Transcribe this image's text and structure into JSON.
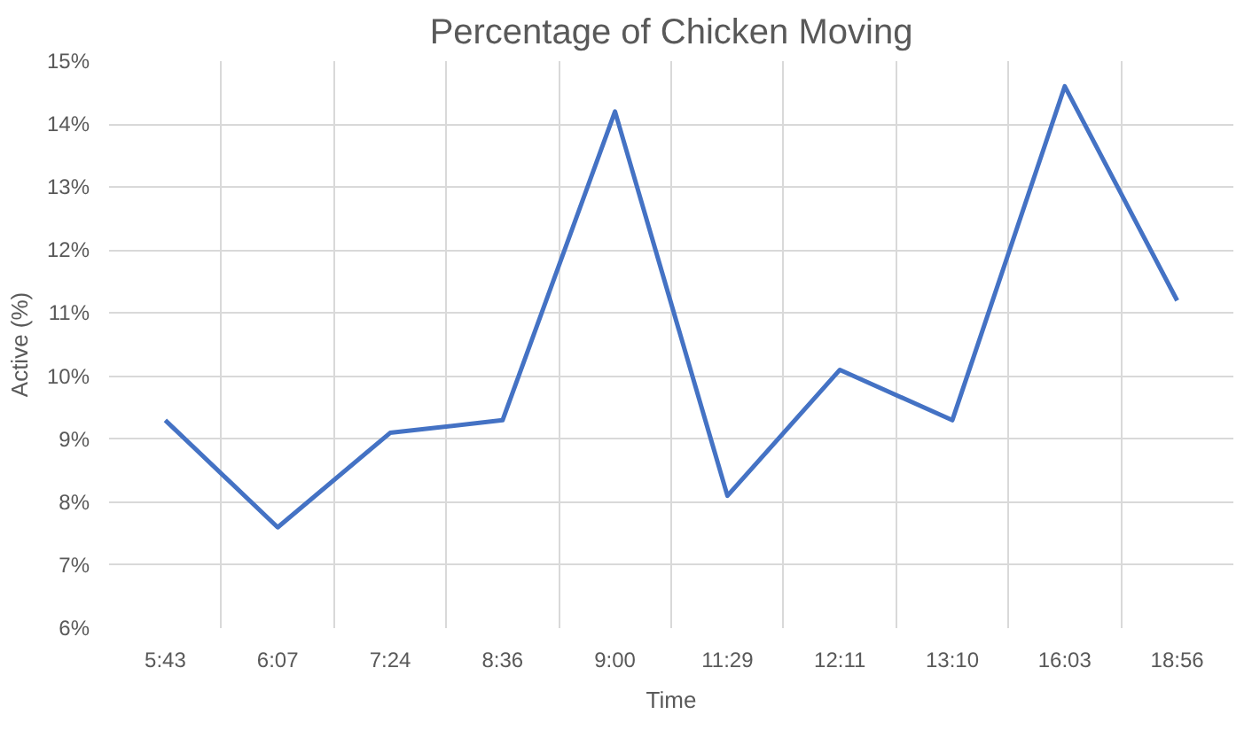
{
  "chart_data": {
    "type": "line",
    "title": "Percentage of Chicken Moving",
    "xlabel": "Time",
    "ylabel": "Active (%)",
    "categories": [
      "5:43",
      "6:07",
      "7:24",
      "8:36",
      "9:00",
      "11:29",
      "12:11",
      "13:10",
      "16:03",
      "18:56"
    ],
    "series": [
      {
        "color": "#4472c4",
        "values": [
          9.3,
          7.6,
          9.1,
          9.3,
          14.2,
          8.1,
          10.1,
          9.3,
          14.6,
          11.2
        ]
      }
    ],
    "ylim": [
      6,
      15
    ],
    "yticks": [
      {
        "value": 6,
        "label": "6%"
      },
      {
        "value": 7,
        "label": "7%"
      },
      {
        "value": 8,
        "label": "8%"
      },
      {
        "value": 9,
        "label": "9%"
      },
      {
        "value": 10,
        "label": "10%"
      },
      {
        "value": 11,
        "label": "11%"
      },
      {
        "value": 12,
        "label": "12%"
      },
      {
        "value": 13,
        "label": "13%"
      },
      {
        "value": 14,
        "label": "14%"
      },
      {
        "value": 15,
        "label": "15%"
      }
    ],
    "grid": true
  }
}
